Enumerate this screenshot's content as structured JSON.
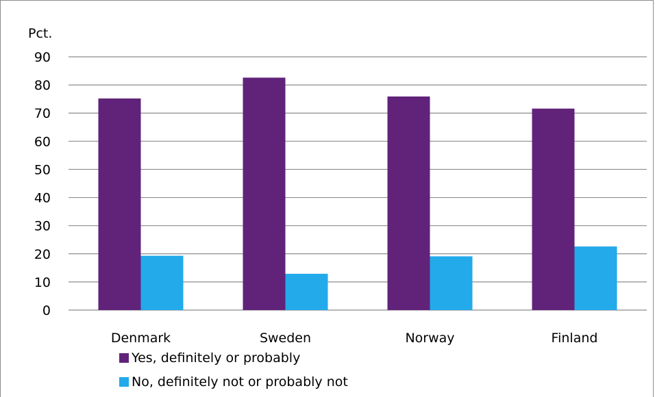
{
  "chart_data": {
    "type": "bar",
    "ylabel": "Pct.",
    "ylim": [
      0,
      90
    ],
    "yticks": [
      "0",
      "10",
      "20",
      "30",
      "40",
      "50",
      "60",
      "70",
      "80",
      "90"
    ],
    "categories": [
      "Denmark",
      "Sweden",
      "Norway",
      "Finland"
    ],
    "series": [
      {
        "name": "Yes, definitely or probably",
        "color": "#61237a",
        "values": [
          75.2,
          82.6,
          75.9,
          71.6
        ]
      },
      {
        "name": "No, definitely not or probably not",
        "color": "#22aaeb",
        "values": [
          19.3,
          12.9,
          19.1,
          22.6
        ]
      }
    ],
    "grid": true,
    "legend_position": "bottom-left"
  }
}
